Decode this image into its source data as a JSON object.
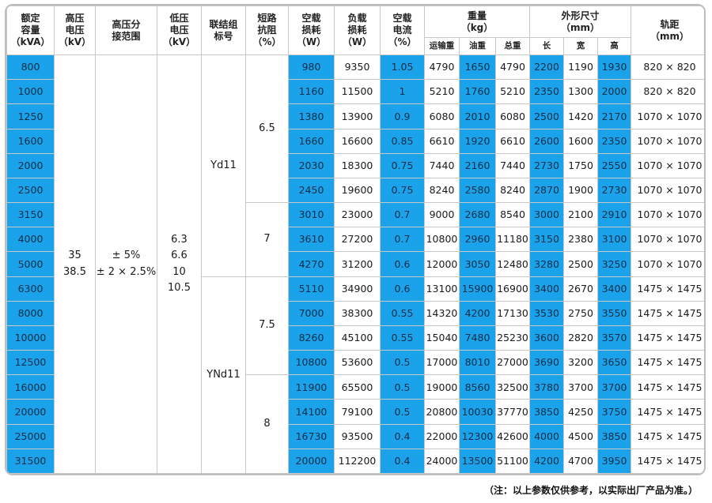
{
  "headers": {
    "capacity": "额定\n容量\n（kVA）",
    "hv_voltage": "高压\n电压\n（kV）",
    "tap_range": "高压分\n接范围",
    "lv_voltage": "低压\n电压\n（kV）",
    "connection": "联结组\n标号",
    "impedance": "短路\n抗阻\n（%）",
    "noload_loss": "空载\n损耗\n（W）",
    "load_loss": "负载\n损耗\n（W）",
    "noload_current": "空载\n电流\n（%）",
    "weight": "重量\n（kg）",
    "weight_transport": "运输重",
    "weight_oil": "油重",
    "weight_total": "总重",
    "dimensions": "外形尺寸\n（mm）",
    "dim_length": "长",
    "dim_width": "宽",
    "dim_height": "高",
    "gauge": "轨距\n（mm）"
  },
  "merged": {
    "hv_voltage": [
      "35",
      "38.5"
    ],
    "tap_range": [
      "± 5%",
      "± 2 × 2.5%"
    ],
    "lv_voltage": [
      "6.3",
      "6.6",
      "10",
      "10.5"
    ],
    "connection_a": "Yd11",
    "connection_b": "YNd11",
    "impedance_a": "6.5",
    "impedance_b": "7",
    "impedance_c": "7.5",
    "impedance_d": "8"
  },
  "rows": [
    {
      "cap": "800",
      "nl": "980",
      "ll": "9350",
      "nc": "1.05",
      "wt": "4790",
      "wo": "1650",
      "wa": "4790",
      "l": "2200",
      "w": "1190",
      "h": "1930",
      "g": "820 × 820"
    },
    {
      "cap": "1000",
      "nl": "1160",
      "ll": "11500",
      "nc": "1",
      "wt": "5210",
      "wo": "1760",
      "wa": "5210",
      "l": "2350",
      "w": "1300",
      "h": "2000",
      "g": "820 × 820"
    },
    {
      "cap": "1250",
      "nl": "1380",
      "ll": "13900",
      "nc": "0.9",
      "wt": "6080",
      "wo": "2010",
      "wa": "6080",
      "l": "2500",
      "w": "1420",
      "h": "2170",
      "g": "1070 × 1070"
    },
    {
      "cap": "1600",
      "nl": "1660",
      "ll": "16600",
      "nc": "0.85",
      "wt": "6610",
      "wo": "1920",
      "wa": "6610",
      "l": "2600",
      "w": "1600",
      "h": "2350",
      "g": "1070 × 1070"
    },
    {
      "cap": "2000",
      "nl": "2030",
      "ll": "18300",
      "nc": "0.75",
      "wt": "7440",
      "wo": "2160",
      "wa": "7440",
      "l": "2730",
      "w": "1750",
      "h": "2550",
      "g": "1070 × 1070"
    },
    {
      "cap": "2500",
      "nl": "2450",
      "ll": "19600",
      "nc": "0.75",
      "wt": "8240",
      "wo": "2580",
      "wa": "8240",
      "l": "2870",
      "w": "1900",
      "h": "2730",
      "g": "1070 × 1070"
    },
    {
      "cap": "3150",
      "nl": "3010",
      "ll": "23000",
      "nc": "0.7",
      "wt": "9000",
      "wo": "2680",
      "wa": "8540",
      "l": "3000",
      "w": "2100",
      "h": "2910",
      "g": "1070 × 1070"
    },
    {
      "cap": "4000",
      "nl": "3610",
      "ll": "27200",
      "nc": "0.7",
      "wt": "10800",
      "wo": "2960",
      "wa": "11180",
      "l": "3150",
      "w": "2380",
      "h": "3100",
      "g": "1070 × 1070"
    },
    {
      "cap": "5000",
      "nl": "4270",
      "ll": "31200",
      "nc": "0.6",
      "wt": "12000",
      "wo": "3050",
      "wa": "12480",
      "l": "3280",
      "w": "2500",
      "h": "3250",
      "g": "1070 × 1070"
    },
    {
      "cap": "6300",
      "nl": "5110",
      "ll": "34900",
      "nc": "0.6",
      "wt": "13100",
      "wo": "15900",
      "wa": "16900",
      "l": "3400",
      "w": "2670",
      "h": "3400",
      "g": "1475 × 1475"
    },
    {
      "cap": "8000",
      "nl": "7000",
      "ll": "38300",
      "nc": "0.55",
      "wt": "14320",
      "wo": "4200",
      "wa": "17130",
      "l": "3530",
      "w": "2750",
      "h": "3550",
      "g": "1475 × 1475"
    },
    {
      "cap": "10000",
      "nl": "8260",
      "ll": "45100",
      "nc": "0.55",
      "wt": "15040",
      "wo": "7480",
      "wa": "25230",
      "l": "3600",
      "w": "2820",
      "h": "3570",
      "g": "1475 × 1475"
    },
    {
      "cap": "12500",
      "nl": "10800",
      "ll": "53600",
      "nc": "0.5",
      "wt": "17000",
      "wo": "8010",
      "wa": "27000",
      "l": "3690",
      "w": "3200",
      "h": "3650",
      "g": "1475 × 1475"
    },
    {
      "cap": "16000",
      "nl": "11900",
      "ll": "65500",
      "nc": "0.5",
      "wt": "19000",
      "wo": "8560",
      "wa": "32500",
      "l": "3780",
      "w": "3700",
      "h": "3700",
      "g": "1475 × 1475"
    },
    {
      "cap": "20000",
      "nl": "14100",
      "ll": "79100",
      "nc": "0.5",
      "wt": "20800",
      "wo": "10030",
      "wa": "37770",
      "l": "3850",
      "w": "4250",
      "h": "3750",
      "g": "1475 × 1475"
    },
    {
      "cap": "25000",
      "nl": "16730",
      "ll": "93500",
      "nc": "0.4",
      "wt": "22000",
      "wo": "12300",
      "wa": "42600",
      "l": "4000",
      "w": "4500",
      "h": "3850",
      "g": "1475 × 1475"
    },
    {
      "cap": "31500",
      "nl": "20000",
      "ll": "112200",
      "nc": "0.4",
      "wt": "24000",
      "wo": "13500",
      "wa": "51100",
      "l": "4200",
      "w": "4700",
      "h": "3950",
      "g": "1475 × 1475"
    }
  ],
  "note": "（注：以上参数仅供参考，以实际出厂产品为准。）",
  "colors": {
    "accent_blue": "#1aa3ea",
    "border": "#c8c8c8",
    "frame": "#bdbdbd"
  }
}
